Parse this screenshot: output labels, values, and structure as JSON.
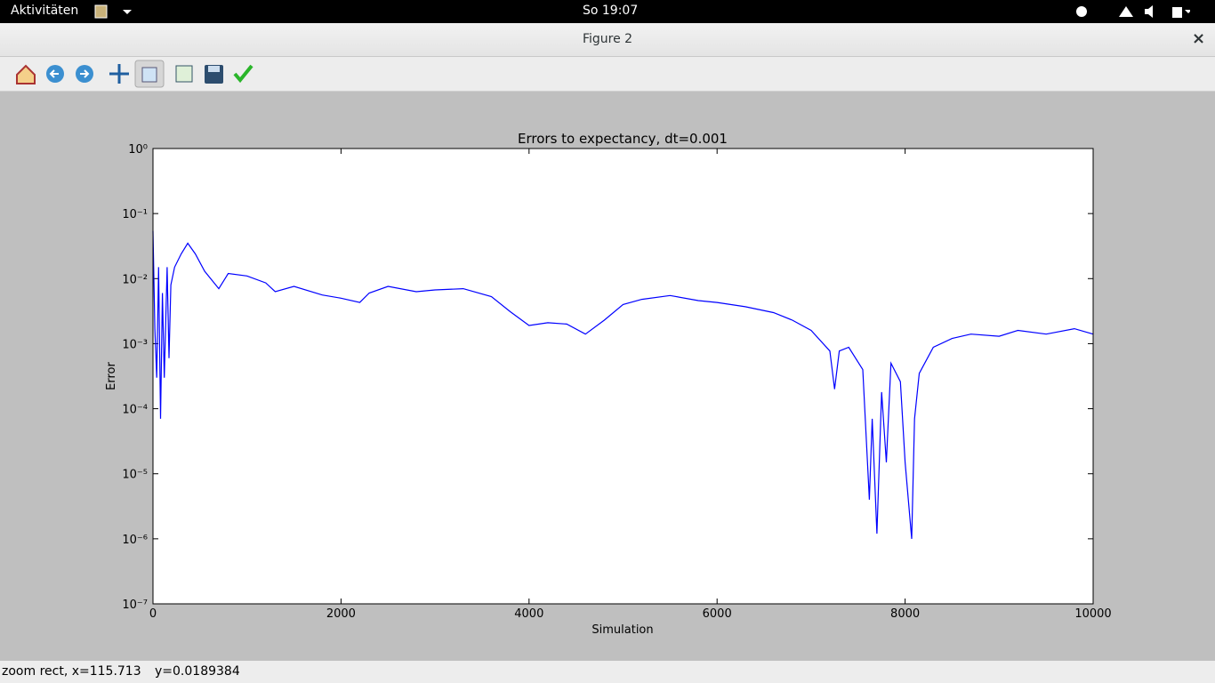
{
  "top_bar": {
    "activities": "Aktivitäten",
    "clock": "So 19:07"
  },
  "window": {
    "title": "Figure 2",
    "close": "×"
  },
  "status_bar": {
    "position": "zoom rect, x=115.713",
    "y_position": "y=0.0189384"
  },
  "chart_data": {
    "type": "line",
    "title": "Errors to expectancy, dt=0.001",
    "x_label": "Simulation",
    "y_label": "Error",
    "color": "#0000ff",
    "y_log": true,
    "xlim": [
      0,
      10000
    ],
    "xticks": [
      0,
      2000,
      4000,
      6000,
      8000,
      10000
    ],
    "ylim": [
      1e-07,
      1
    ],
    "yticks": [
      {
        "value": 1e-07,
        "label": "10⁻⁷"
      },
      {
        "value": 1e-06,
        "label": "10⁻⁶"
      },
      {
        "value": 1e-05,
        "label": "10⁻⁵"
      },
      {
        "value": 0.0001,
        "label": "10⁻⁴"
      },
      {
        "value": 0.001,
        "label": "10⁻³"
      },
      {
        "value": 0.01,
        "label": "10⁻²"
      },
      {
        "value": 0.1,
        "label": "10⁻¹"
      },
      {
        "value": 1,
        "label": "10⁰"
      }
    ],
    "x": [
      0,
      20,
      40,
      60,
      80,
      100,
      120,
      150,
      170,
      190,
      230,
      300,
      370,
      450,
      550,
      700,
      800,
      1000,
      1200,
      1300,
      1500,
      1800,
      2000,
      2200,
      2300,
      2500,
      2800,
      3000,
      3300,
      3600,
      3800,
      4000,
      4200,
      4400,
      4600,
      4800,
      5000,
      5200,
      5500,
      5800,
      6000,
      6300,
      6600,
      6800,
      7000,
      7200,
      7250,
      7300,
      7400,
      7550,
      7620,
      7650,
      7700,
      7750,
      7800,
      7850,
      7950,
      8000,
      8070,
      8100,
      8150,
      8300,
      8500,
      8700,
      9000,
      9200,
      9500,
      9800,
      10000
    ],
    "values": [
      0.054,
      0.0017,
      0.0003,
      0.015,
      7e-05,
      0.006,
      0.0003,
      0.015,
      0.0006,
      0.008,
      0.015,
      0.024,
      0.035,
      0.024,
      0.013,
      0.007,
      0.012,
      0.011,
      0.0086,
      0.0063,
      0.0076,
      0.0056,
      0.005,
      0.0043,
      0.006,
      0.0076,
      0.0063,
      0.0067,
      0.007,
      0.0053,
      0.0031,
      0.0019,
      0.0021,
      0.002,
      0.0014,
      0.0023,
      0.004,
      0.0048,
      0.0055,
      0.0046,
      0.0043,
      0.0037,
      0.003,
      0.0023,
      0.0016,
      0.00077,
      0.0002,
      0.00077,
      0.00088,
      0.0004,
      4e-06,
      7e-05,
      1.2e-06,
      0.00018,
      1.5e-05,
      0.0005,
      0.00026,
      1.5e-05,
      1e-06,
      7e-05,
      0.00035,
      0.00088,
      0.0012,
      0.0014,
      0.0013,
      0.0016,
      0.0014,
      0.0017,
      0.0014
    ]
  }
}
